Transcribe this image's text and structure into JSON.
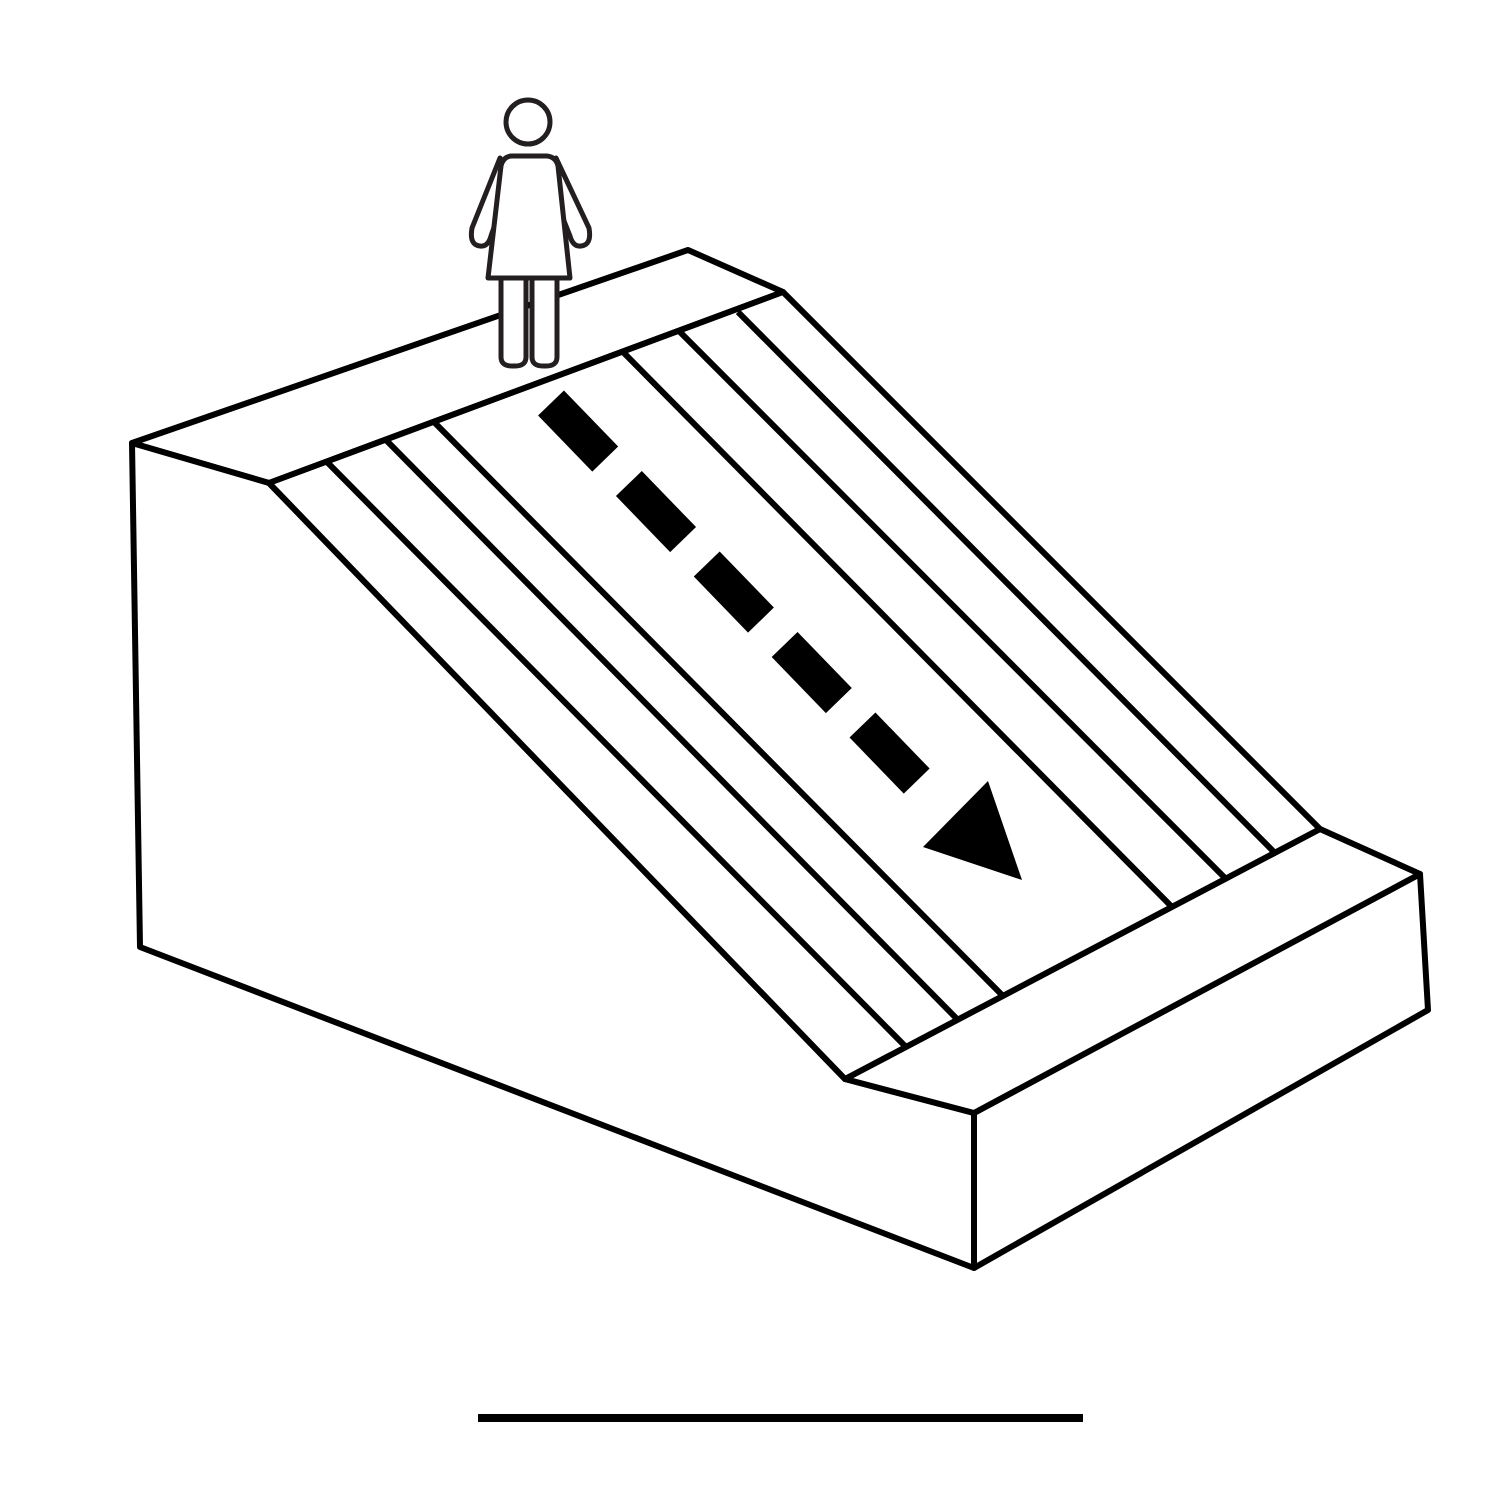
{
  "diagram": {
    "subject": "person-at-top-of-slope-moving-down",
    "colors": {
      "background": "#ffffff",
      "stroke": "#000000",
      "fill": "#ffffff",
      "arrow": "#000000",
      "figure_stroke": "#231f20"
    },
    "icons": {
      "person": "person-icon",
      "direction": "dashed-arrow-icon"
    },
    "stripe_count": 8,
    "arrow_dash_count": 6
  }
}
